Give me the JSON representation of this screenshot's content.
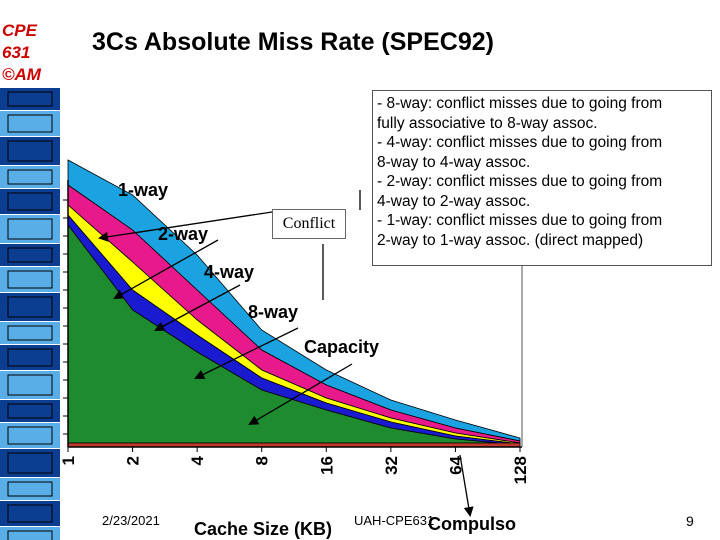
{
  "slide": {
    "logo_lines": [
      "CPE",
      "631",
      "©AM"
    ],
    "title": "3Cs Absolute Miss Rate (SPEC92)",
    "explanation_lines": [
      "- 8-way: conflict misses due to going from",
      "fully associative to 8-way assoc.",
      "- 4-way: conflict misses due to going from",
      "8-way to 4-way assoc.",
      "- 2-way: conflict misses due to going from",
      "4-way to 2-way assoc.",
      "- 1-way: conflict misses due to going from",
      "2-way to 1-way assoc. (direct mapped)"
    ],
    "conflict_label": "Conflict",
    "footer": {
      "date": "2/23/2021",
      "center": "UAH-CPE631",
      "page": "9"
    }
  },
  "chart_data": {
    "type": "area",
    "xlabel": "Cache Size (KB)",
    "x": [
      "1",
      "2",
      "4",
      "8",
      "16",
      "32",
      "64",
      "128"
    ],
    "series": [
      {
        "name": "1-way",
        "color": "#1aa3e0"
      },
      {
        "name": "2-way",
        "color": "#e8198b"
      },
      {
        "name": "4-way",
        "color": "#ffff00"
      },
      {
        "name": "8-way",
        "color": "#1a1ad0"
      },
      {
        "name": "Capacity",
        "color": "#1e8c2e"
      },
      {
        "name": "Compulsory",
        "color": "#c0392b"
      }
    ],
    "visible_series_labels": [
      "1-way",
      "2-way",
      "4-way",
      "8-way",
      "Capacity",
      "Compulso"
    ]
  },
  "colors": {
    "logo": "#cc0000",
    "strip_dark": "#0b3d91",
    "strip_light": "#5aaee8"
  }
}
